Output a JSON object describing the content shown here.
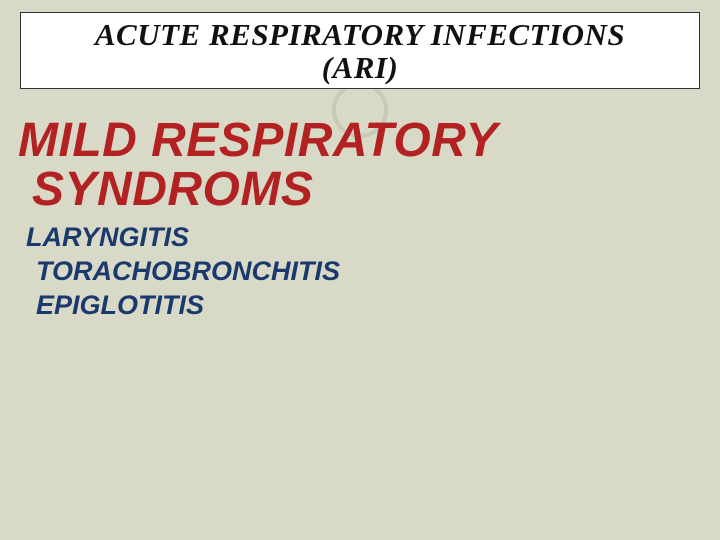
{
  "colors": {
    "page_bg": "#d9d9c7",
    "title_bg": "#ffffff",
    "title_border": "#333333",
    "title_text": "#111111",
    "ring": "#c9c9b8",
    "subtitle_text": "#b22222",
    "syndrome_text": "#1a3a6e"
  },
  "typography": {
    "title_family": "Georgia",
    "title_size_pt": 23,
    "title_weight": "bold",
    "title_style": "italic",
    "subtitle_family": "Trebuchet MS",
    "subtitle_size_pt": 36,
    "subtitle_weight": "bold",
    "subtitle_style": "italic",
    "syndrome_size_pt": 20,
    "syndrome_weight": "bold",
    "syndrome_style": "italic"
  },
  "title": {
    "line1": "ACUTE RESPIRATORY INFECTIONS",
    "line2": "(ARI)"
  },
  "subtitle": {
    "word1": "MILD RESPIRATORY",
    "word2": "SYNDROMS"
  },
  "syndromes": {
    "items": [
      "LARYNGITIS",
      "TORACHOBRONCHITIS",
      "EPIGLOTITIS"
    ]
  }
}
